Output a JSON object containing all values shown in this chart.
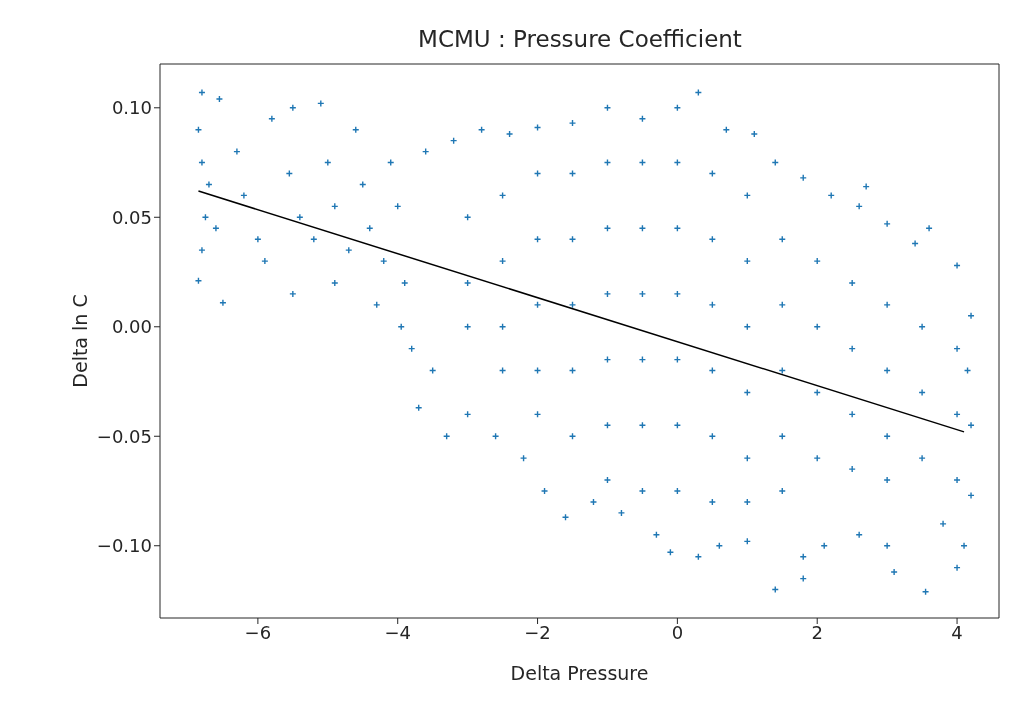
{
  "chart_data": {
    "type": "scatter",
    "title": "MCMU : Pressure Coefficient",
    "xlabel": "Delta Pressure",
    "ylabel": "Delta ln C",
    "xlim": [
      -7.4,
      4.6
    ],
    "xticks": [
      {
        "value": -6,
        "label": "−6"
      },
      {
        "value": -4,
        "label": "−4"
      },
      {
        "value": -2,
        "label": "−2"
      },
      0,
      2,
      4
    ],
    "ylim": [
      -0.133,
      0.12
    ],
    "yticks": [
      {
        "value": -0.1,
        "label": "−0.10"
      },
      {
        "value": -0.05,
        "label": "−0.05"
      },
      {
        "value": 0,
        "label": "0.00"
      },
      {
        "value": 0.05,
        "label": "0.05"
      },
      {
        "value": 0.1,
        "label": "0.10"
      }
    ],
    "marker": "cross",
    "series": [
      {
        "color": "#1f77b4",
        "x": [
          -6.8,
          -6.55,
          -6.85,
          -6.8,
          -6.7,
          -6.75,
          -6.8,
          -6.85,
          -6.5,
          -6.6,
          -6.3,
          -6.2,
          -6.0,
          -5.9,
          -5.8,
          -5.5,
          -5.55,
          -5.4,
          -5.5,
          -5.2,
          -5.1,
          -5.0,
          -4.9,
          -4.9,
          -4.7,
          -4.6,
          -4.5,
          -4.4,
          -4.3,
          -4.2,
          -4.1,
          -4.0,
          -3.95,
          -3.9,
          -3.8,
          -3.7,
          -3.6,
          -3.2,
          -2.8,
          -2.4,
          -2.0,
          -1.5,
          -1.0,
          -0.5,
          0.0,
          0.3,
          0.7,
          1.1,
          1.4,
          1.8,
          2.2,
          2.6,
          2.7,
          3.0,
          3.4,
          3.6,
          4.0,
          4.2,
          -3.5,
          -3.3,
          -3.0,
          -2.6,
          -2.2,
          -1.9,
          -1.6,
          -1.2,
          -0.8,
          -0.3,
          -0.1,
          0.3,
          0.6,
          1.0,
          1.4,
          1.8,
          1.8,
          2.1,
          2.6,
          3.0,
          3.1,
          3.55,
          3.8,
          4.0,
          4.1,
          4.2,
          4.2,
          4.15,
          -3,
          -3,
          -3,
          -2.5,
          -2.5,
          -2.5,
          -2.5,
          -2,
          -2,
          -2,
          -2,
          -2,
          -1.5,
          -1.5,
          -1.5,
          -1.5,
          -1.5,
          -1,
          -1,
          -1,
          -1,
          -1,
          -1,
          -0.5,
          -0.5,
          -0.5,
          -0.5,
          -0.5,
          -0.5,
          0,
          0,
          0,
          0,
          0,
          0,
          0.5,
          0.5,
          0.5,
          0.5,
          0.5,
          0.5,
          1,
          1,
          1,
          1,
          1,
          1,
          1.5,
          1.5,
          1.5,
          1.5,
          1.5,
          2,
          2,
          2,
          2,
          2.5,
          2.5,
          2.5,
          2.5,
          3,
          3,
          3,
          3,
          3.5,
          3.5,
          3.5,
          4,
          4,
          4
        ],
        "values": [
          0.107,
          0.104,
          0.09,
          0.075,
          0.065,
          0.05,
          0.035,
          0.021,
          0.011,
          0.045,
          0.08,
          0.06,
          0.04,
          0.03,
          0.095,
          0.1,
          0.07,
          0.05,
          0.015,
          0.04,
          0.102,
          0.075,
          0.055,
          0.02,
          0.035,
          0.09,
          0.065,
          0.045,
          0.01,
          0.03,
          0.075,
          0.055,
          0.0,
          0.02,
          -0.01,
          -0.037,
          0.08,
          0.085,
          0.09,
          0.088,
          0.091,
          0.093,
          0.1,
          0.095,
          0.1,
          0.107,
          0.09,
          0.088,
          0.075,
          0.068,
          0.06,
          0.055,
          0.064,
          0.047,
          0.038,
          0.045,
          0.028,
          0.005,
          -0.02,
          -0.05,
          -0.04,
          -0.05,
          -0.06,
          -0.075,
          -0.087,
          -0.08,
          -0.085,
          -0.095,
          -0.103,
          -0.105,
          -0.1,
          -0.098,
          -0.12,
          -0.115,
          -0.105,
          -0.1,
          -0.095,
          -0.1,
          -0.112,
          -0.121,
          -0.09,
          -0.11,
          -0.1,
          -0.077,
          -0.045,
          -0.02,
          0.05,
          0.0,
          0.02,
          0.06,
          0.03,
          0.0,
          -0.02,
          0.07,
          0.04,
          0.01,
          -0.02,
          -0.04,
          0.07,
          0.04,
          0.01,
          -0.02,
          -0.05,
          0.075,
          0.045,
          0.015,
          -0.015,
          -0.045,
          -0.07,
          0.075,
          0.045,
          0.015,
          -0.015,
          -0.045,
          -0.075,
          0.075,
          0.045,
          0.015,
          -0.015,
          -0.045,
          -0.075,
          0.07,
          0.04,
          0.01,
          -0.02,
          -0.05,
          -0.08,
          0.06,
          0.03,
          0.0,
          -0.03,
          -0.06,
          -0.08,
          0.04,
          0.01,
          -0.02,
          -0.05,
          -0.075,
          0.03,
          0.0,
          -0.03,
          -0.06,
          0.02,
          -0.01,
          -0.04,
          -0.065,
          0.01,
          -0.02,
          -0.05,
          -0.07,
          0.0,
          -0.03,
          -0.06,
          -0.01,
          -0.04,
          -0.07
        ]
      },
      {
        "type": "line",
        "marker": "none",
        "color": "#000000",
        "x": [
          -6.85,
          4.1
        ],
        "values": [
          0.062,
          -0.048
        ]
      }
    ]
  }
}
